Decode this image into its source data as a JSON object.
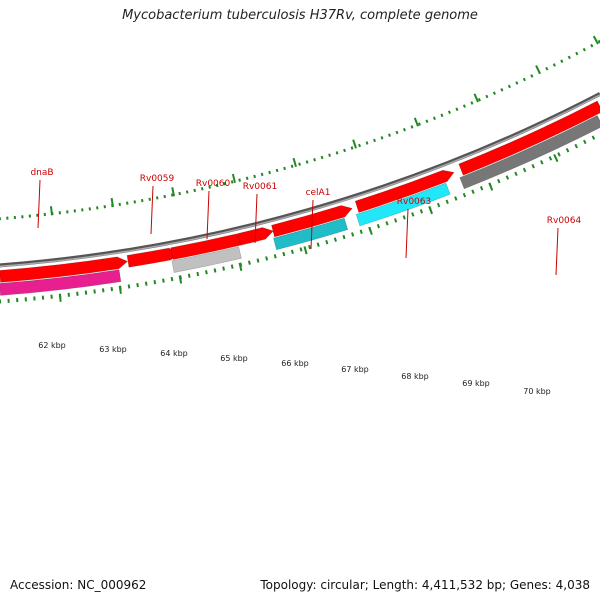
{
  "map": {
    "title": "Mycobacterium tuberculosis H37Rv, complete genome",
    "accession_text": "Accession: NC_000962",
    "summary_text": "Topology: circular; Length: 4,411,532 bp; Genes: 4,038"
  },
  "colors": {
    "gene_label": "#cc0000",
    "tick": "#228822",
    "strand": "#ff0000",
    "backbone": "#777777"
  },
  "scale_labels": [
    "62 kbp",
    "63 kbp",
    "64 kbp",
    "65 kbp",
    "66 kbp",
    "67 kbp",
    "68 kbp",
    "69 kbp",
    "70 kbp"
  ],
  "features": [
    {
      "name": "dnaB",
      "color": "#e8208f"
    },
    {
      "name": "",
      "color": "#c0c0c0"
    },
    {
      "name": "",
      "color": "#20bcc8"
    },
    {
      "name": "",
      "color": "#20e8f8"
    },
    {
      "name": "",
      "color": "#777777"
    }
  ],
  "gene_labels": [
    "dnaB",
    "Rv0059",
    "Rv0060",
    "Rv0061",
    "celA1",
    "Rv0063",
    "Rv0064"
  ]
}
